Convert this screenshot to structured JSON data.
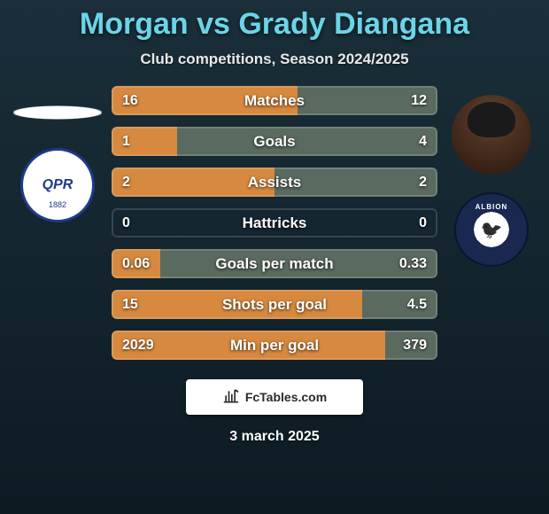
{
  "title": "Morgan vs Grady Diangana",
  "subtitle": "Club competitions, Season 2024/2025",
  "date": "3 march 2025",
  "footer_label": "FcTables.com",
  "colors": {
    "left_bar": "#d6893f",
    "right_bar": "#5a6a5f",
    "title": "#6bd4e8",
    "background_top": "#1a2f3a",
    "background_bottom": "#0d1a22"
  },
  "left_player": {
    "name": "Morgan",
    "club": "QPR"
  },
  "right_player": {
    "name": "Grady Diangana",
    "club": "West Bromwich Albion"
  },
  "rows": [
    {
      "label": "Matches",
      "left": "16",
      "right": "12",
      "lfrac": 0.57,
      "rfrac": 0.43
    },
    {
      "label": "Goals",
      "left": "1",
      "right": "4",
      "lfrac": 0.2,
      "rfrac": 0.8
    },
    {
      "label": "Assists",
      "left": "2",
      "right": "2",
      "lfrac": 0.5,
      "rfrac": 0.5
    },
    {
      "label": "Hattricks",
      "left": "0",
      "right": "0",
      "lfrac": 0.0,
      "rfrac": 0.0
    },
    {
      "label": "Goals per match",
      "left": "0.06",
      "right": "0.33",
      "lfrac": 0.15,
      "rfrac": 0.85
    },
    {
      "label": "Shots per goal",
      "left": "15",
      "right": "4.5",
      "lfrac": 0.77,
      "rfrac": 0.23
    },
    {
      "label": "Min per goal",
      "left": "2029",
      "right": "379",
      "lfrac": 0.84,
      "rfrac": 0.16
    }
  ],
  "typography": {
    "title_fontsize": 34,
    "subtitle_fontsize": 17,
    "label_fontsize": 17,
    "value_fontsize": 16,
    "date_fontsize": 16
  }
}
